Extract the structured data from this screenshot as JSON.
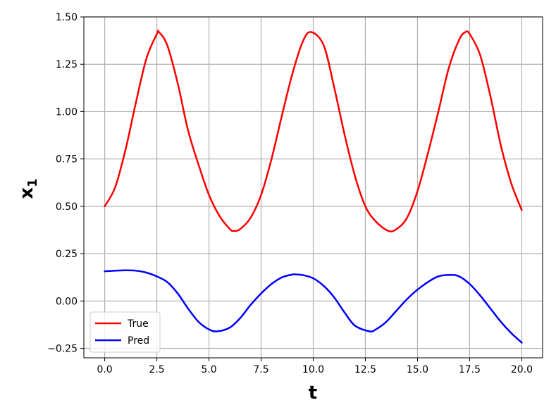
{
  "chart_data": {
    "type": "line",
    "xlabel": "t",
    "ylabel": "x",
    "ylabel_subscript": "1",
    "xlim": [
      -1,
      21
    ],
    "ylim": [
      -0.3,
      1.5
    ],
    "xticks": [
      0,
      2.5,
      5,
      7.5,
      10,
      12.5,
      15,
      17.5,
      20
    ],
    "xtick_labels": [
      "0.0",
      "2.5",
      "5.0",
      "7.5",
      "10.0",
      "12.5",
      "15.0",
      "17.5",
      "20.0"
    ],
    "yticks": [
      -0.25,
      0,
      0.25,
      0.5,
      0.75,
      1.0,
      1.25,
      1.5
    ],
    "ytick_labels": [
      "−0.25",
      "0.00",
      "0.25",
      "0.50",
      "0.75",
      "1.00",
      "1.25",
      "1.50"
    ],
    "grid": true,
    "legend_position": "lower-left",
    "series": [
      {
        "name": "True",
        "color": "#ff0000",
        "x": [
          0,
          0.5,
          1,
          1.5,
          2,
          2.5,
          2.6,
          3,
          3.5,
          4,
          4.5,
          5,
          5.5,
          6,
          6.2,
          6.5,
          7,
          7.5,
          8,
          8.5,
          9,
          9.5,
          9.9,
          10.5,
          11,
          11.5,
          12,
          12.5,
          13,
          13.6,
          14,
          14.5,
          15,
          15.5,
          16,
          16.5,
          17,
          17.3,
          17.5,
          18,
          18.5,
          19,
          19.5,
          20
        ],
        "y": [
          0.5,
          0.6,
          0.8,
          1.05,
          1.28,
          1.41,
          1.42,
          1.35,
          1.15,
          0.9,
          0.72,
          0.56,
          0.45,
          0.38,
          0.37,
          0.38,
          0.44,
          0.56,
          0.75,
          0.98,
          1.2,
          1.37,
          1.42,
          1.35,
          1.13,
          0.88,
          0.66,
          0.5,
          0.42,
          0.37,
          0.38,
          0.44,
          0.58,
          0.78,
          1.0,
          1.23,
          1.38,
          1.42,
          1.41,
          1.3,
          1.08,
          0.82,
          0.62,
          0.48
        ]
      },
      {
        "name": "Pred",
        "color": "#0000ff",
        "x": [
          0,
          0.5,
          1,
          1.5,
          2,
          2.5,
          3,
          3.5,
          4,
          4.5,
          5,
          5.4,
          6,
          6.5,
          7,
          7.5,
          8,
          8.5,
          9,
          9.2,
          9.5,
          10,
          10.5,
          11,
          11.5,
          12,
          12.7,
          13,
          13.5,
          14,
          14.5,
          15,
          15.5,
          16,
          16.6,
          17,
          17.5,
          18,
          18.5,
          19,
          19.5,
          20
        ],
        "y": [
          0.157,
          0.16,
          0.162,
          0.16,
          0.15,
          0.13,
          0.1,
          0.04,
          -0.04,
          -0.11,
          -0.15,
          -0.16,
          -0.14,
          -0.09,
          -0.02,
          0.04,
          0.09,
          0.125,
          0.14,
          0.14,
          0.137,
          0.12,
          0.08,
          0.02,
          -0.06,
          -0.13,
          -0.16,
          -0.15,
          -0.11,
          -0.05,
          0.01,
          0.06,
          0.1,
          0.13,
          0.138,
          0.13,
          0.09,
          0.03,
          -0.04,
          -0.11,
          -0.17,
          -0.22
        ]
      }
    ]
  }
}
